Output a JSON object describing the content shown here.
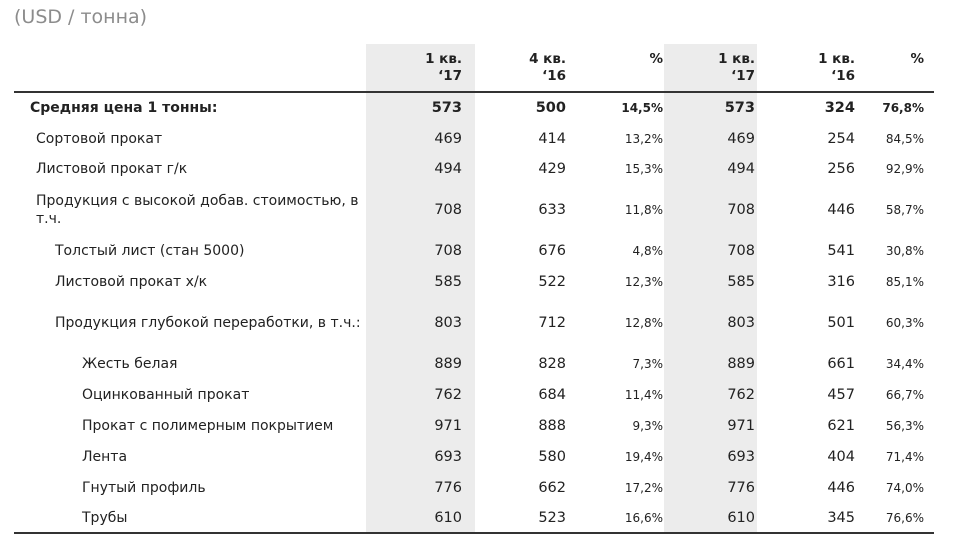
{
  "unit_label": "(USD / тонна)",
  "columns": [
    {
      "line1": "1 кв.",
      "line2": "‘17"
    },
    {
      "line1": "4 кв.",
      "line2": "‘16"
    },
    {
      "line1": "%",
      "line2": ""
    },
    {
      "line1": "1 кв.",
      "line2": "‘17"
    },
    {
      "line1": "1 кв.",
      "line2": "‘16"
    },
    {
      "line1": "%",
      "line2": ""
    }
  ],
  "rows": [
    {
      "label": "Средняя цена 1 тонны:",
      "level": 0,
      "bold": true,
      "values": [
        "573",
        "500",
        "14,5%",
        "573",
        "324",
        "76,8%"
      ]
    },
    {
      "label": "Сортовой прокат",
      "level": 1,
      "bold": false,
      "values": [
        "469",
        "414",
        "13,2%",
        "469",
        "254",
        "84,5%"
      ]
    },
    {
      "label": "Листовой прокат г/к",
      "level": 1,
      "bold": false,
      "values": [
        "494",
        "429",
        "15,3%",
        "494",
        "256",
        "92,9%"
      ]
    },
    {
      "label": "Продукция с высокой добав. стоимостью, в т.ч.",
      "level": 1,
      "bold": false,
      "values": [
        "708",
        "633",
        "11,8%",
        "708",
        "446",
        "58,7%"
      ]
    },
    {
      "label": "Толстый лист (стан 5000)",
      "level": 2,
      "bold": false,
      "values": [
        "708",
        "676",
        "4,8%",
        "708",
        "541",
        "30,8%"
      ]
    },
    {
      "label": "Листовой прокат х/к",
      "level": 2,
      "bold": false,
      "values": [
        "585",
        "522",
        "12,3%",
        "585",
        "316",
        "85,1%"
      ]
    },
    {
      "label": "Продукция глубокой переработки, в т.ч.:",
      "level": 2,
      "bold": false,
      "values": [
        "803",
        "712",
        "12,8%",
        "803",
        "501",
        "60,3%"
      ]
    },
    {
      "label": "Жесть белая",
      "level": 3,
      "bold": false,
      "values": [
        "889",
        "828",
        "7,3%",
        "889",
        "661",
        "34,4%"
      ]
    },
    {
      "label": "Оцинкованный прокат",
      "level": 3,
      "bold": false,
      "values": [
        "762",
        "684",
        "11,4%",
        "762",
        "457",
        "66,7%"
      ]
    },
    {
      "label": "Прокат с полимерным покрытием",
      "level": 3,
      "bold": false,
      "values": [
        "971",
        "888",
        "9,3%",
        "971",
        "621",
        "56,3%"
      ]
    },
    {
      "label": "Лента",
      "level": 3,
      "bold": false,
      "values": [
        "693",
        "580",
        "19,4%",
        "693",
        "404",
        "71,4%"
      ]
    },
    {
      "label": "Гнутый профиль",
      "level": 3,
      "bold": false,
      "values": [
        "776",
        "662",
        "17,2%",
        "776",
        "446",
        "74,0%"
      ]
    },
    {
      "label": "Трубы",
      "level": 3,
      "bold": false,
      "values": [
        "610",
        "523",
        "16,6%",
        "610",
        "345",
        "76,6%"
      ]
    }
  ]
}
